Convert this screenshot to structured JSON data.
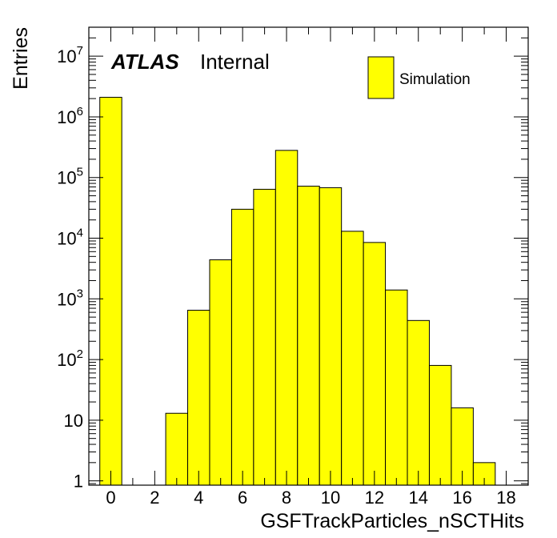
{
  "chart_data": {
    "type": "bar",
    "xlabel": "GSFTrackParticles_nSCTHits",
    "ylabel": "Entries",
    "yscale": "log",
    "xlim": [
      -1,
      19
    ],
    "ylim": [
      0.85,
      30000000
    ],
    "x_tick_labels": [
      "0",
      "2",
      "4",
      "6",
      "8",
      "10",
      "12",
      "14",
      "16",
      "18"
    ],
    "y_tick_labels": [
      {
        "base": "1",
        "exp": ""
      },
      {
        "base": "10",
        "exp": ""
      },
      {
        "base": "10",
        "exp": "2"
      },
      {
        "base": "10",
        "exp": "3"
      },
      {
        "base": "10",
        "exp": "4"
      },
      {
        "base": "10",
        "exp": "5"
      },
      {
        "base": "10",
        "exp": "6"
      },
      {
        "base": "10",
        "exp": "7"
      }
    ],
    "series": [
      {
        "name": "Simulation",
        "color": "#ffff00",
        "bins": [
          {
            "x": 0,
            "value": 2100000
          },
          {
            "x": 1,
            "value": 0
          },
          {
            "x": 2,
            "value": 0
          },
          {
            "x": 3,
            "value": 13
          },
          {
            "x": 4,
            "value": 650
          },
          {
            "x": 5,
            "value": 4400
          },
          {
            "x": 6,
            "value": 30000
          },
          {
            "x": 7,
            "value": 64000
          },
          {
            "x": 8,
            "value": 280000
          },
          {
            "x": 9,
            "value": 72000
          },
          {
            "x": 10,
            "value": 68000
          },
          {
            "x": 11,
            "value": 13000
          },
          {
            "x": 12,
            "value": 8500
          },
          {
            "x": 13,
            "value": 1400
          },
          {
            "x": 14,
            "value": 440
          },
          {
            "x": 15,
            "value": 80
          },
          {
            "x": 16,
            "value": 16
          },
          {
            "x": 17,
            "value": 2
          },
          {
            "x": 18,
            "value": 0
          }
        ]
      }
    ],
    "legend_position": "top-right",
    "annotation": {
      "bold": "ATLAS",
      "normal": "Internal"
    }
  }
}
